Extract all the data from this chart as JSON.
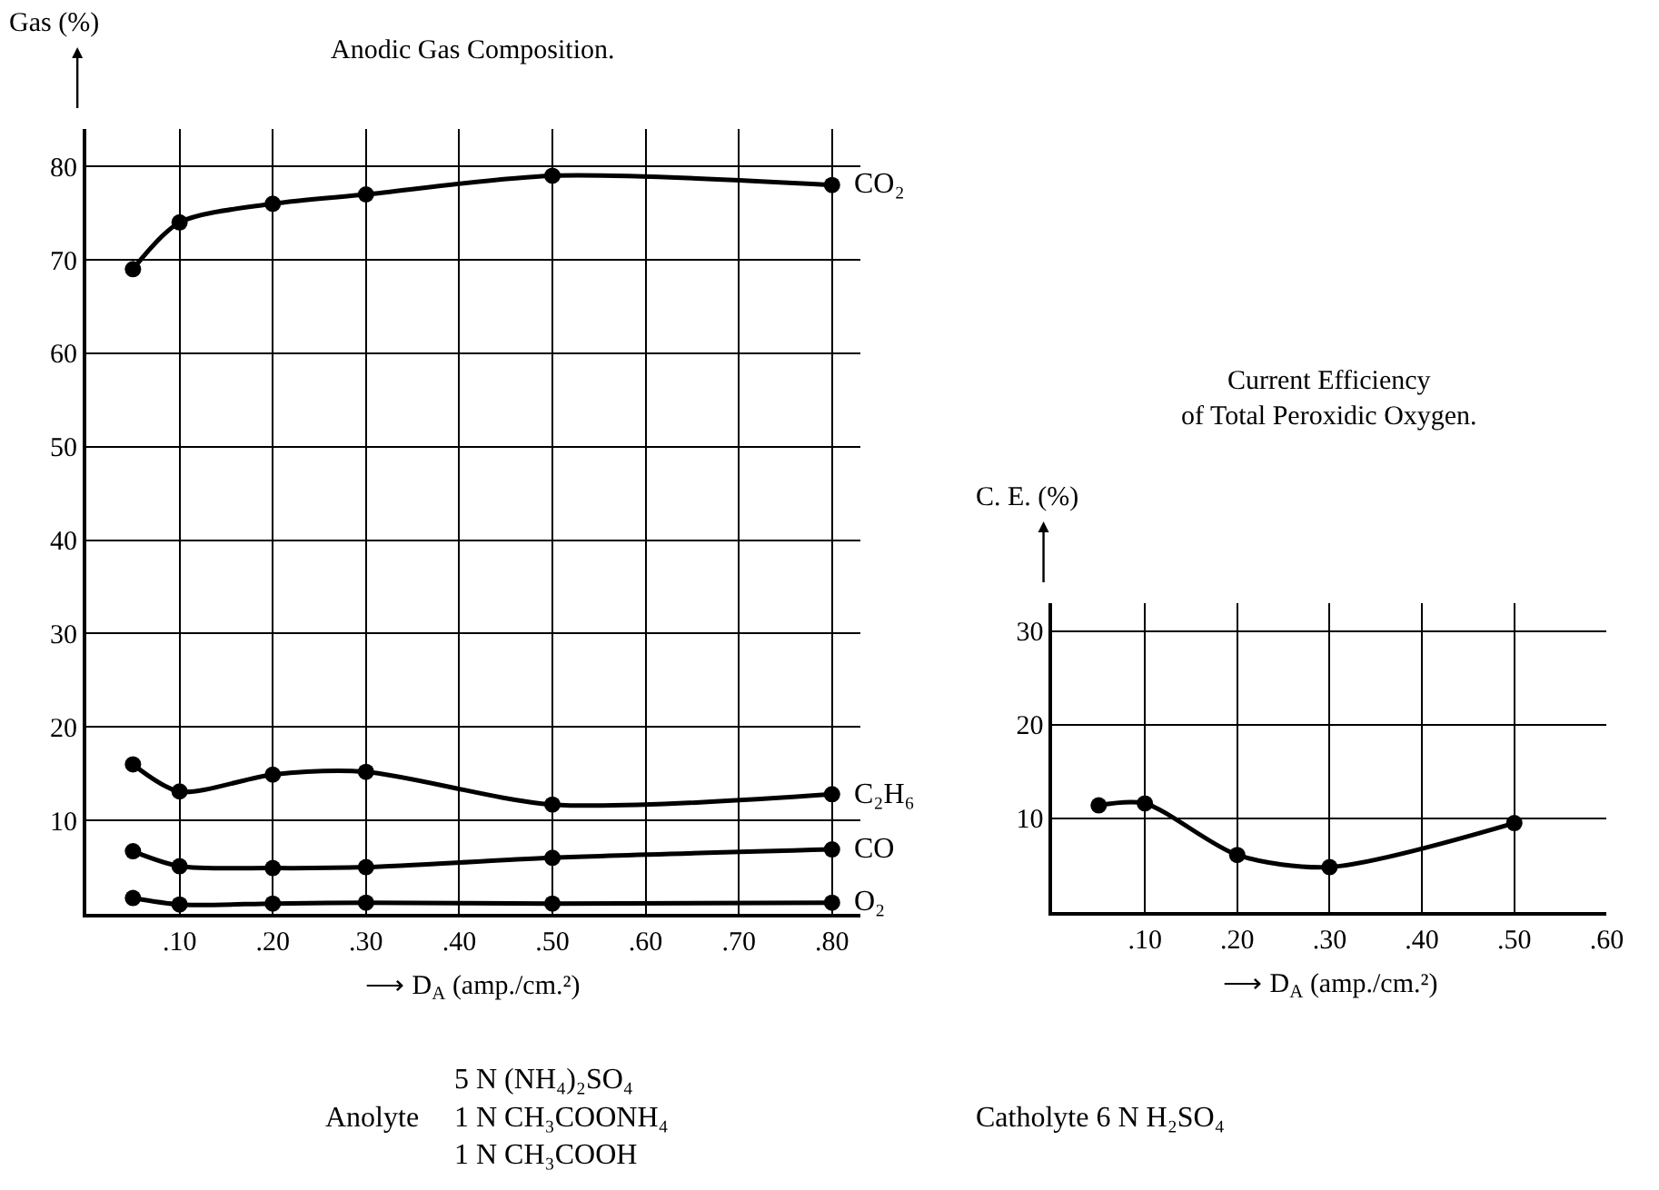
{
  "chart_data": [
    {
      "type": "line",
      "title": "Anodic Gas Composition.",
      "ylabel": "Gas (%)",
      "xlabel": "⟶ D$_{A}$ (amp./cm.²)",
      "x": [
        0.05,
        0.1,
        0.2,
        0.3,
        0.5,
        0.8
      ],
      "series": [
        {
          "name": "CO₂",
          "color": "#000000",
          "values": [
            69,
            74,
            76,
            77,
            79,
            78
          ]
        },
        {
          "name": "C₂H₆",
          "color": "#000000",
          "values": [
            16,
            13.1,
            14.9,
            15.2,
            11.7,
            12.8
          ]
        },
        {
          "name": "CO",
          "color": "#000000",
          "values": [
            6.7,
            5.1,
            4.9,
            5.0,
            6.0,
            6.9
          ]
        },
        {
          "name": "O₂",
          "color": "#000000",
          "values": [
            1.7,
            1.0,
            1.1,
            1.2,
            1.1,
            1.2
          ]
        }
      ],
      "xlim": [
        0,
        0.83
      ],
      "ylim": [
        0,
        84
      ],
      "xticks": [
        {
          "value": 0.1,
          "label": ".10"
        },
        {
          "value": 0.2,
          "label": ".20"
        },
        {
          "value": 0.3,
          "label": ".30"
        },
        {
          "value": 0.4,
          "label": ".40"
        },
        {
          "value": 0.5,
          "label": ".50"
        },
        {
          "value": 0.6,
          "label": ".60"
        },
        {
          "value": 0.7,
          "label": ".70"
        },
        {
          "value": 0.8,
          "label": ".80"
        }
      ],
      "yticks": [
        10,
        20,
        30,
        40,
        50,
        60,
        70,
        80
      ],
      "grid": true,
      "legend": false,
      "marker": "circle",
      "line_style": "solid",
      "annotations": [
        "Anolyte",
        "5 N (NH₄)₂SO₄\n1 N CH₃COONH₄\n1 N CH₃COOH",
        "Catholyte 6 N H₂SO₄"
      ]
    },
    {
      "type": "line",
      "title": "Current Efficiency\nof Total Peroxidic Oxygen.",
      "ylabel": "C. E. (%)",
      "xlabel": "⟶ D$_{A}$ (amp./cm.²)",
      "x": [
        0.05,
        0.1,
        0.2,
        0.3,
        0.5
      ],
      "series": [
        {
          "color": "#000000",
          "values": [
            11.4,
            11.6,
            6.1,
            4.8,
            9.5
          ]
        }
      ],
      "xlim": [
        0,
        0.6
      ],
      "ylim": [
        0,
        33
      ],
      "xticks": [
        {
          "value": 0.1,
          "label": ".10"
        },
        {
          "value": 0.2,
          "label": ".20"
        },
        {
          "value": 0.3,
          "label": ".30"
        },
        {
          "value": 0.4,
          "label": ".40"
        },
        {
          "value": 0.5,
          "label": ".50"
        },
        {
          "value": 0.6,
          "label": ".60"
        }
      ],
      "yticks": [
        10,
        20,
        30
      ],
      "grid": true,
      "legend": false,
      "marker": "circle",
      "line_style": "solid"
    }
  ]
}
